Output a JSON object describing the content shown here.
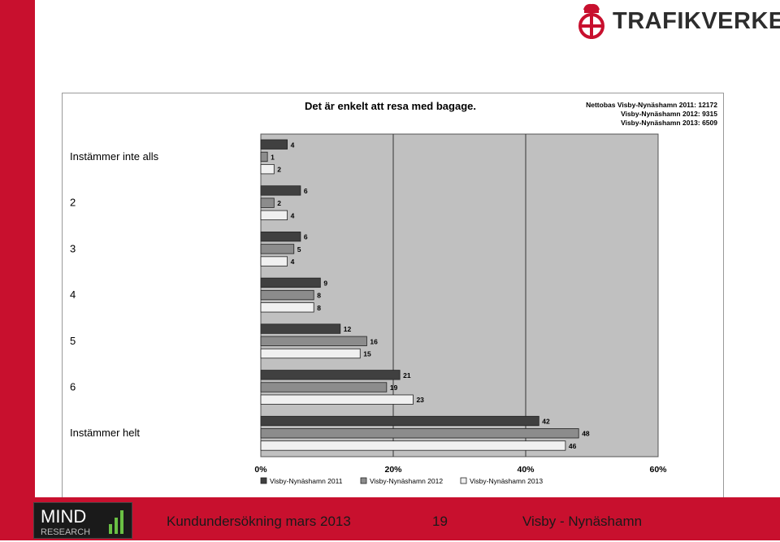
{
  "brand": {
    "name": "TRAFIKVERKET",
    "accent": "#c8102e"
  },
  "footer": {
    "logo_main": "MIND",
    "logo_sub": "RESEARCH",
    "survey": "Kundundersökning mars 2013",
    "page_number": "19",
    "route": "Visby - Nynäshamn"
  },
  "chart_data": {
    "type": "bar",
    "orientation": "horizontal",
    "title": "Det är enkelt att resa med bagage.",
    "nettobas": [
      "Nettobas  Visby-Nynäshamn 2011: 12172",
      "Visby-Nynäshamn 2012: 9315",
      "Visby-Nynäshamn 2013: 6509"
    ],
    "categories": [
      "Instämmer inte alls",
      "2",
      "3",
      "4",
      "5",
      "6",
      "Instämmer helt"
    ],
    "series": [
      {
        "name": "Visby-Nynäshamn 2011",
        "values": [
          4,
          6,
          6,
          9,
          12,
          21,
          42
        ],
        "color": "#404040"
      },
      {
        "name": "Visby-Nynäshamn 2012",
        "values": [
          1,
          2,
          5,
          8,
          16,
          19,
          48
        ],
        "color": "#8c8c8c"
      },
      {
        "name": "Visby-Nynäshamn 2013",
        "values": [
          2,
          4,
          4,
          8,
          15,
          23,
          46
        ],
        "color": "#f0f0f0"
      }
    ],
    "x_ticks": [
      "0%",
      "20%",
      "40%",
      "60%"
    ],
    "xlim": [
      0,
      60
    ],
    "unit": "%",
    "legend_position": "bottom",
    "grid": true,
    "plot_background": "#c0c0c0"
  }
}
